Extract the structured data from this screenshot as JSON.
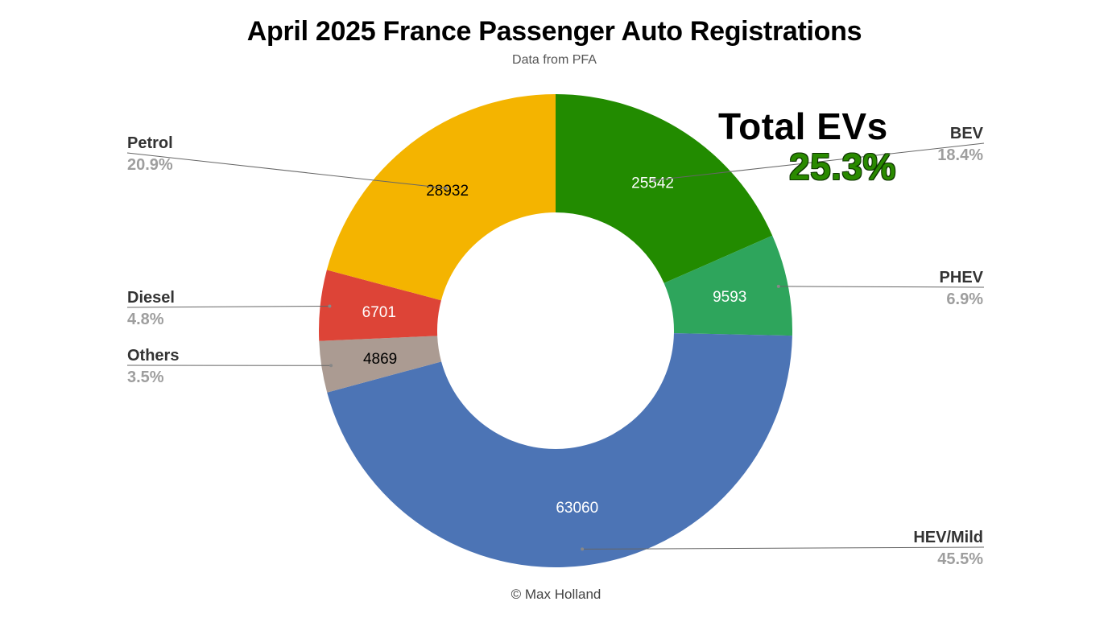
{
  "header": {
    "title": "April 2025 France Passenger Auto Registrations",
    "subtitle": "Data from PFA"
  },
  "callout": {
    "label": "Total EVs",
    "value": "25.3%",
    "value_color": "#2a8a00"
  },
  "footer": {
    "credit": "© Max Holland"
  },
  "chart_data": {
    "type": "pie",
    "donut": true,
    "title": "April 2025 France Passenger Auto Registrations",
    "subtitle": "Data from PFA",
    "slices": [
      {
        "label": "BEV",
        "value": 25542,
        "percent": "18.4%",
        "color": "#228b00",
        "value_text_color": "#ffffff"
      },
      {
        "label": "PHEV",
        "value": 9593,
        "percent": "6.9%",
        "color": "#2ea55c",
        "value_text_color": "#ffffff"
      },
      {
        "label": "HEV/Mild",
        "value": 63060,
        "percent": "45.5%",
        "color": "#4c74b5",
        "value_text_color": "#ffffff"
      },
      {
        "label": "Others",
        "value": 4869,
        "percent": "3.5%",
        "color": "#ab9b92",
        "value_text_color": "#000000"
      },
      {
        "label": "Diesel",
        "value": 6701,
        "percent": "4.8%",
        "color": "#dd4437",
        "value_text_color": "#ffffff"
      },
      {
        "label": "Petrol",
        "value": 28932,
        "percent": "20.9%",
        "color": "#f4b400",
        "value_text_color": "#000000"
      }
    ]
  }
}
